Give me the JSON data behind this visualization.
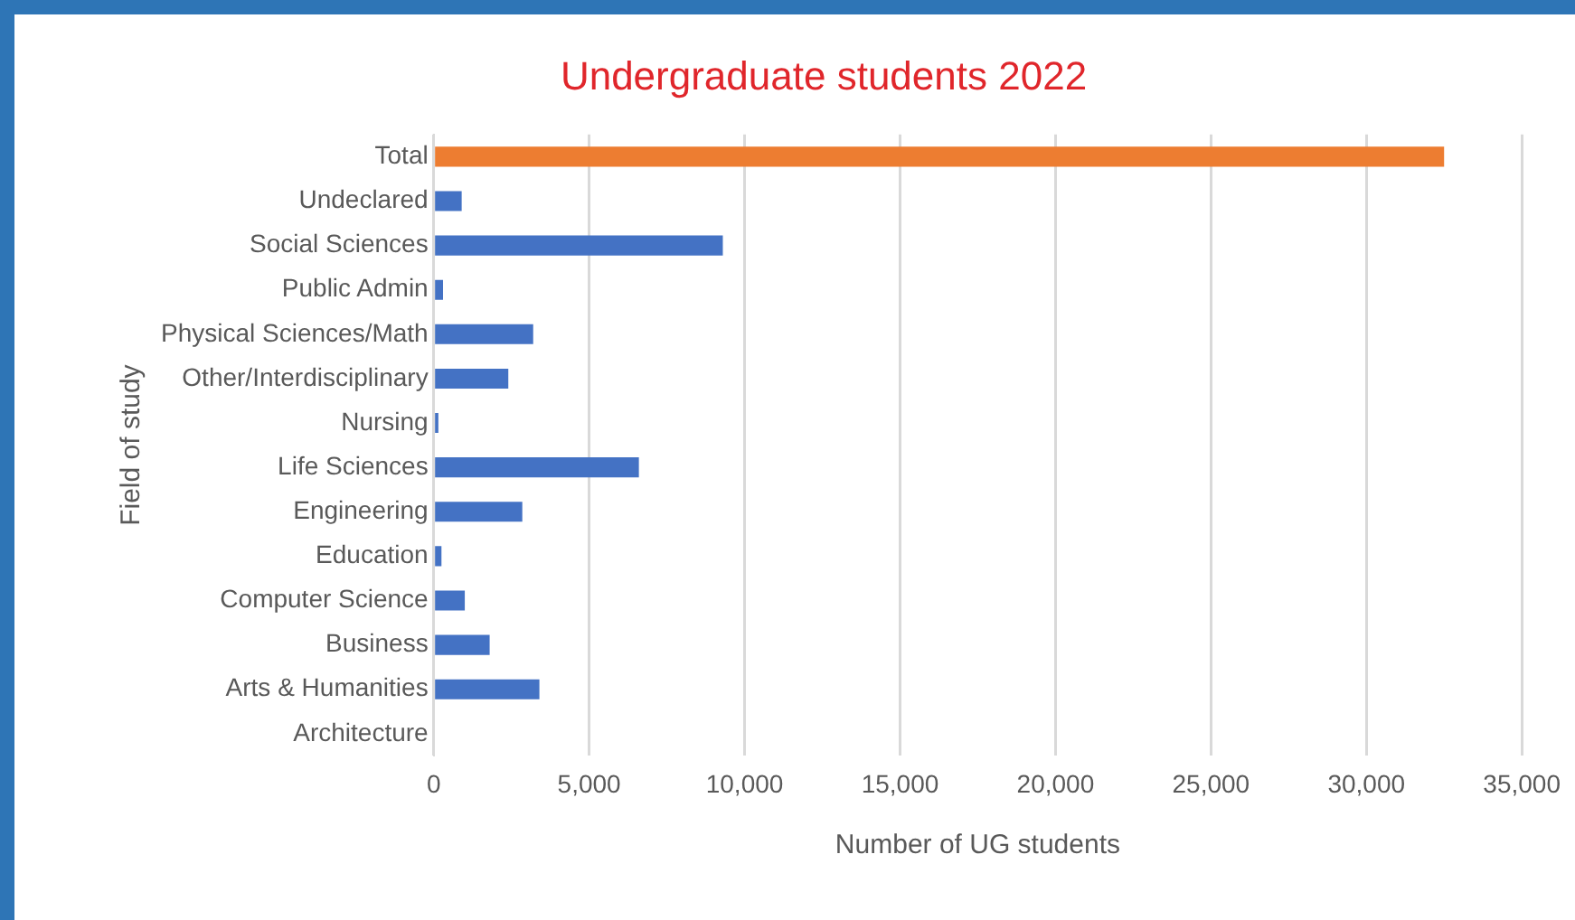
{
  "chart_data": {
    "type": "bar",
    "orientation": "horizontal",
    "title": "Undergraduate students 2022",
    "xlabel": "Number of UG students",
    "ylabel": "Field of study",
    "categories": [
      "Total",
      "Undeclared",
      "Social Sciences",
      "Public Admin",
      "Physical Sciences/Math",
      "Other/Interdisciplinary",
      "Nursing",
      "Life Sciences",
      "Engineering",
      "Education",
      "Computer Science",
      "Business",
      "Arts & Humanities",
      "Architecture"
    ],
    "values": [
      32500,
      900,
      9300,
      300,
      3200,
      2400,
      150,
      6600,
      2850,
      250,
      1000,
      1800,
      3400,
      0
    ],
    "colors": [
      "#ed7d31",
      "#4472c4",
      "#4472c4",
      "#4472c4",
      "#4472c4",
      "#4472c4",
      "#4472c4",
      "#4472c4",
      "#4472c4",
      "#4472c4",
      "#4472c4",
      "#4472c4",
      "#4472c4",
      "#4472c4"
    ],
    "xlim": [
      0,
      35000
    ],
    "xticks": [
      0,
      {
        "value": 5000,
        "label": "5,000"
      },
      {
        "value": 10000,
        "label": "10,000"
      },
      {
        "value": 15000,
        "label": "15,000"
      },
      {
        "value": 20000,
        "label": "20,000"
      },
      {
        "value": 25000,
        "label": "25,000"
      },
      {
        "value": 30000,
        "label": "30,000"
      },
      {
        "value": 35000,
        "label": "35,000"
      }
    ],
    "grid": "x",
    "legend": false
  }
}
